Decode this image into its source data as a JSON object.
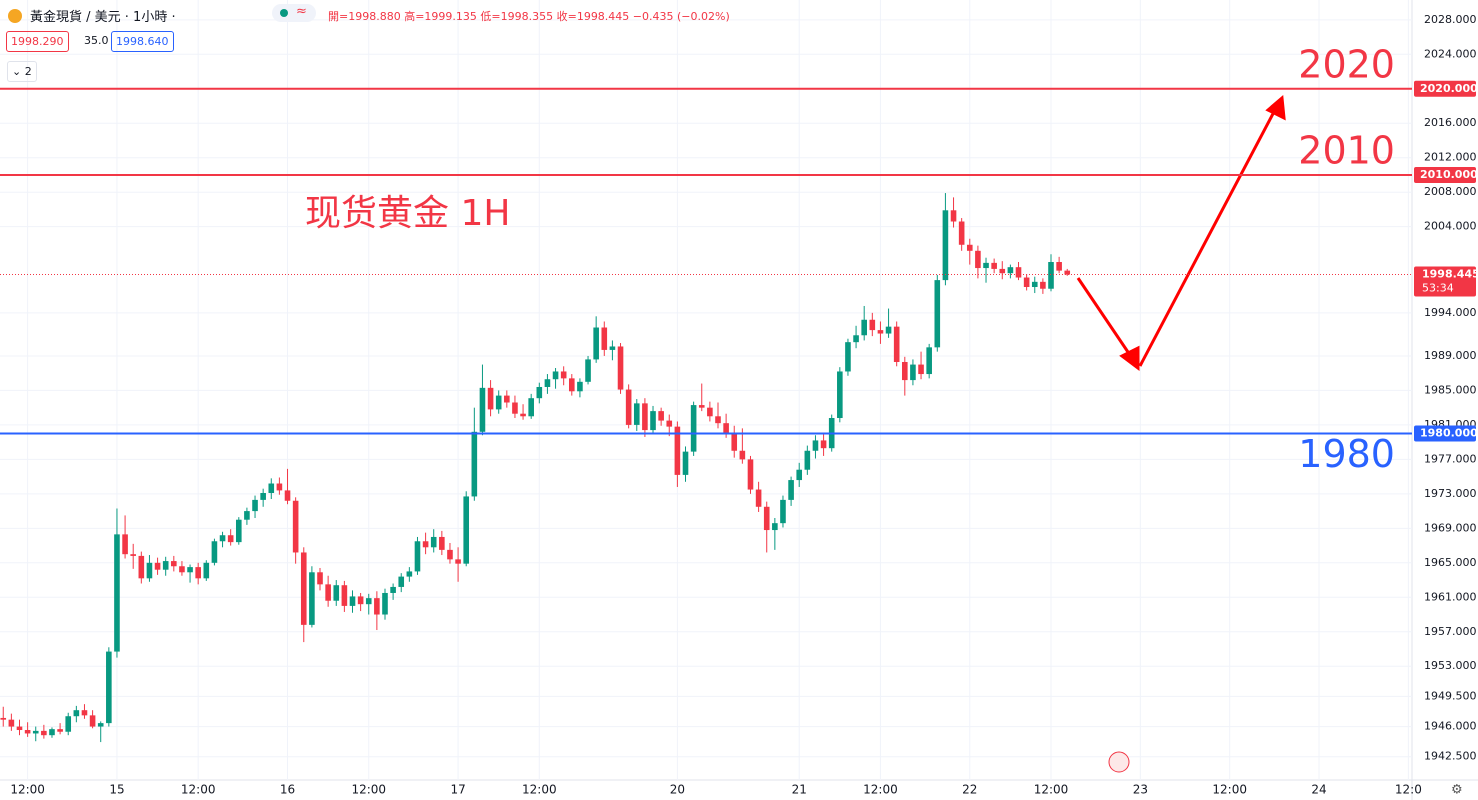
{
  "header": {
    "symbol": "黃金現貨 / 美元 · 1小時 ·",
    "ohlc": "開=1998.880 高=1999.135 低=1998.355 收=1998.445 −0.435 (−0.02%)",
    "bid": "1998.290",
    "spread": "35.0",
    "ask": "1998.640",
    "indicators": "2"
  },
  "chart_data": {
    "type": "candlestick",
    "title": "现货黄金 1H",
    "up_color": "#089981",
    "down_color": "#f23645",
    "grid": true,
    "xlim": [
      -0.4,
      173.2
    ],
    "ylim": [
      1939.8,
      2030.3
    ],
    "xticks": [
      {
        "value": 3,
        "label": "12:00"
      },
      {
        "value": 14,
        "label": "15"
      },
      {
        "value": 24,
        "label": "12:00"
      },
      {
        "value": 35,
        "label": "16"
      },
      {
        "value": 45,
        "label": "12:00"
      },
      {
        "value": 56,
        "label": "17"
      },
      {
        "value": 66,
        "label": "12:00"
      },
      {
        "value": 83,
        "label": "20"
      },
      {
        "value": 98,
        "label": "21"
      },
      {
        "value": 108,
        "label": "12:00"
      },
      {
        "value": 119,
        "label": "22"
      },
      {
        "value": 129,
        "label": "12:00"
      },
      {
        "value": 140,
        "label": "23"
      },
      {
        "value": 151,
        "label": "12:00"
      },
      {
        "value": 162,
        "label": "24"
      },
      {
        "value": 173,
        "label": "12:0"
      }
    ],
    "yticks": [
      {
        "value": 2028,
        "label": "2028.000"
      },
      {
        "value": 2024,
        "label": "2024.000"
      },
      {
        "value": 2016,
        "label": "2016.000"
      },
      {
        "value": 2012,
        "label": "2012.000"
      },
      {
        "value": 2008,
        "label": "2008.000"
      },
      {
        "value": 2004,
        "label": "2004.000"
      },
      {
        "value": 1994,
        "label": "1994.000"
      },
      {
        "value": 1989,
        "label": "1989.000"
      },
      {
        "value": 1985,
        "label": "1985.000"
      },
      {
        "value": 1981,
        "label": "1981.000"
      },
      {
        "value": 1977,
        "label": "1977.000"
      },
      {
        "value": 1973,
        "label": "1973.000"
      },
      {
        "value": 1969,
        "label": "1969.000"
      },
      {
        "value": 1965,
        "label": "1965.000"
      },
      {
        "value": 1961,
        "label": "1961.000"
      },
      {
        "value": 1957,
        "label": "1957.000"
      },
      {
        "value": 1953,
        "label": "1953.000"
      },
      {
        "value": 1949.5,
        "label": "1949.500"
      },
      {
        "value": 1946,
        "label": "1946.000"
      },
      {
        "value": 1942.5,
        "label": "1942.500"
      }
    ],
    "levels": [
      {
        "value": 2020,
        "label": "2020.000",
        "text": "2020",
        "color": "#f23645"
      },
      {
        "value": 2010,
        "label": "2010.000",
        "text": "2010",
        "color": "#f23645"
      },
      {
        "value": 1980,
        "label": "1980.000",
        "text": "1980",
        "color": "#2962ff"
      }
    ],
    "last": {
      "value": 1998.445,
      "label": "1998.445",
      "countdown": "53:34",
      "color": "#f23645"
    },
    "candles": [
      [
        1947.0,
        1948.3,
        1946.0,
        1946.8
      ],
      [
        1946.8,
        1947.5,
        1945.5,
        1946.0
      ],
      [
        1946.0,
        1946.8,
        1945.0,
        1945.6
      ],
      [
        1945.6,
        1946.5,
        1944.8,
        1945.2
      ],
      [
        1945.2,
        1946.0,
        1944.3,
        1945.5
      ],
      [
        1945.5,
        1946.2,
        1944.6,
        1945.0
      ],
      [
        1945.0,
        1945.9,
        1944.7,
        1945.7
      ],
      [
        1945.7,
        1946.4,
        1945.1,
        1945.4
      ],
      [
        1945.4,
        1947.6,
        1945.0,
        1947.2
      ],
      [
        1947.2,
        1948.4,
        1946.5,
        1947.9
      ],
      [
        1947.9,
        1948.6,
        1946.9,
        1947.3
      ],
      [
        1947.3,
        1947.9,
        1945.8,
        1946.0
      ],
      [
        1946.0,
        1946.6,
        1944.2,
        1946.4
      ],
      [
        1946.4,
        1955.2,
        1946.0,
        1954.7
      ],
      [
        1954.7,
        1971.3,
        1954.0,
        1968.3
      ],
      [
        1968.3,
        1970.5,
        1965.5,
        1966.0
      ],
      [
        1966.0,
        1967.2,
        1964.3,
        1965.8
      ],
      [
        1965.8,
        1966.3,
        1962.6,
        1963.2
      ],
      [
        1963.2,
        1965.9,
        1962.8,
        1965.0
      ],
      [
        1965.0,
        1965.6,
        1963.6,
        1964.2
      ],
      [
        1964.2,
        1965.7,
        1963.5,
        1965.2
      ],
      [
        1965.2,
        1965.8,
        1964.0,
        1964.6
      ],
      [
        1964.6,
        1965.2,
        1963.5,
        1963.9
      ],
      [
        1963.9,
        1964.8,
        1962.7,
        1964.5
      ],
      [
        1964.5,
        1965.0,
        1962.5,
        1963.2
      ],
      [
        1963.2,
        1965.3,
        1962.9,
        1965.0
      ],
      [
        1965.0,
        1967.8,
        1964.7,
        1967.5
      ],
      [
        1967.5,
        1968.6,
        1966.8,
        1968.2
      ],
      [
        1968.2,
        1968.9,
        1967.0,
        1967.4
      ],
      [
        1967.4,
        1970.3,
        1967.1,
        1970.0
      ],
      [
        1970.0,
        1971.4,
        1969.4,
        1971.0
      ],
      [
        1971.0,
        1972.8,
        1970.2,
        1972.3
      ],
      [
        1972.3,
        1973.6,
        1971.5,
        1973.1
      ],
      [
        1973.1,
        1974.8,
        1972.4,
        1974.2
      ],
      [
        1974.2,
        1974.9,
        1972.9,
        1973.4
      ],
      [
        1973.4,
        1975.9,
        1971.8,
        1972.2
      ],
      [
        1972.2,
        1972.6,
        1964.9,
        1966.2
      ],
      [
        1966.2,
        1966.8,
        1955.8,
        1957.8
      ],
      [
        1957.8,
        1964.6,
        1957.5,
        1963.9
      ],
      [
        1963.9,
        1964.4,
        1961.8,
        1962.5
      ],
      [
        1962.5,
        1963.5,
        1959.9,
        1960.6
      ],
      [
        1960.6,
        1963.0,
        1960.0,
        1962.4
      ],
      [
        1962.4,
        1962.9,
        1959.3,
        1960.0
      ],
      [
        1960.0,
        1961.8,
        1959.2,
        1961.1
      ],
      [
        1961.1,
        1961.5,
        1959.4,
        1960.2
      ],
      [
        1960.2,
        1961.4,
        1959.0,
        1960.9
      ],
      [
        1960.9,
        1961.7,
        1957.2,
        1959.0
      ],
      [
        1959.0,
        1962.0,
        1958.4,
        1961.5
      ],
      [
        1961.5,
        1962.6,
        1960.7,
        1962.2
      ],
      [
        1962.2,
        1963.8,
        1961.6,
        1963.4
      ],
      [
        1963.4,
        1964.5,
        1962.8,
        1964.0
      ],
      [
        1964.0,
        1968.0,
        1963.6,
        1967.5
      ],
      [
        1967.5,
        1968.5,
        1966.0,
        1966.8
      ],
      [
        1966.8,
        1968.9,
        1966.2,
        1968.0
      ],
      [
        1968.0,
        1968.7,
        1965.9,
        1966.5
      ],
      [
        1966.5,
        1967.3,
        1964.9,
        1965.4
      ],
      [
        1965.4,
        1966.8,
        1962.8,
        1964.9
      ],
      [
        1964.9,
        1973.3,
        1964.6,
        1972.7
      ],
      [
        1972.7,
        1983.0,
        1972.2,
        1980.2
      ],
      [
        1980.2,
        1988.0,
        1979.8,
        1985.3
      ],
      [
        1985.3,
        1986.2,
        1982.0,
        1982.8
      ],
      [
        1982.8,
        1985.0,
        1982.3,
        1984.4
      ],
      [
        1984.4,
        1985.0,
        1983.0,
        1983.6
      ],
      [
        1983.6,
        1984.4,
        1981.8,
        1982.3
      ],
      [
        1982.3,
        1983.4,
        1981.6,
        1982.0
      ],
      [
        1982.0,
        1984.6,
        1981.7,
        1984.1
      ],
      [
        1984.1,
        1985.9,
        1983.5,
        1985.4
      ],
      [
        1985.4,
        1986.9,
        1984.6,
        1986.3
      ],
      [
        1986.3,
        1987.6,
        1985.2,
        1987.2
      ],
      [
        1987.2,
        1987.8,
        1985.6,
        1986.4
      ],
      [
        1986.4,
        1986.9,
        1984.4,
        1984.9
      ],
      [
        1984.9,
        1986.4,
        1984.2,
        1986.0
      ],
      [
        1986.0,
        1989.0,
        1985.7,
        1988.6
      ],
      [
        1988.6,
        1993.6,
        1988.2,
        1992.3
      ],
      [
        1992.3,
        1993.0,
        1989.0,
        1989.7
      ],
      [
        1989.7,
        1990.8,
        1988.5,
        1990.1
      ],
      [
        1990.1,
        1990.5,
        1984.6,
        1985.1
      ],
      [
        1985.1,
        1985.7,
        1980.6,
        1981.0
      ],
      [
        1981.0,
        1984.0,
        1980.3,
        1983.5
      ],
      [
        1983.5,
        1984.1,
        1979.6,
        1980.4
      ],
      [
        1980.4,
        1983.2,
        1979.9,
        1982.6
      ],
      [
        1982.6,
        1983.0,
        1980.9,
        1981.5
      ],
      [
        1981.5,
        1982.2,
        1979.7,
        1980.8
      ],
      [
        1980.8,
        1981.4,
        1973.8,
        1975.2
      ],
      [
        1975.2,
        1978.5,
        1974.4,
        1977.9
      ],
      [
        1977.9,
        1983.7,
        1977.4,
        1983.3
      ],
      [
        1983.3,
        1985.8,
        1982.6,
        1983.0
      ],
      [
        1983.0,
        1983.7,
        1981.4,
        1982.0
      ],
      [
        1982.0,
        1983.6,
        1980.6,
        1981.2
      ],
      [
        1981.2,
        1982.3,
        1979.5,
        1980.1
      ],
      [
        1980.1,
        1980.9,
        1977.2,
        1978.0
      ],
      [
        1978.0,
        1980.6,
        1976.5,
        1977.0
      ],
      [
        1977.0,
        1977.4,
        1973.0,
        1973.5
      ],
      [
        1973.5,
        1974.4,
        1970.9,
        1971.5
      ],
      [
        1971.5,
        1972.1,
        1966.2,
        1968.8
      ],
      [
        1968.8,
        1970.2,
        1966.5,
        1969.6
      ],
      [
        1969.6,
        1972.8,
        1969.1,
        1972.3
      ],
      [
        1972.3,
        1975.0,
        1971.6,
        1974.6
      ],
      [
        1974.6,
        1976.6,
        1973.8,
        1975.8
      ],
      [
        1975.8,
        1978.6,
        1975.2,
        1978.0
      ],
      [
        1978.0,
        1979.8,
        1977.1,
        1979.2
      ],
      [
        1979.2,
        1979.9,
        1977.4,
        1978.3
      ],
      [
        1978.3,
        1982.2,
        1977.9,
        1981.8
      ],
      [
        1981.8,
        1987.7,
        1981.3,
        1987.2
      ],
      [
        1987.2,
        1991.0,
        1986.7,
        1990.6
      ],
      [
        1990.6,
        1992.5,
        1989.9,
        1991.4
      ],
      [
        1991.4,
        1994.8,
        1990.8,
        1993.2
      ],
      [
        1993.2,
        1994.0,
        1991.3,
        1992.0
      ],
      [
        1992.0,
        1993.0,
        1990.4,
        1991.6
      ],
      [
        1991.6,
        1994.5,
        1991.1,
        1992.4
      ],
      [
        1992.4,
        1993.0,
        1987.8,
        1988.3
      ],
      [
        1988.3,
        1988.9,
        1984.4,
        1986.2
      ],
      [
        1986.2,
        1988.6,
        1985.6,
        1988.0
      ],
      [
        1988.0,
        1989.5,
        1986.3,
        1986.9
      ],
      [
        1986.9,
        1990.4,
        1986.4,
        1990.0
      ],
      [
        1990.0,
        1998.4,
        1989.5,
        1997.8
      ],
      [
        1997.8,
        2007.9,
        1997.2,
        2005.9
      ],
      [
        2005.9,
        2007.4,
        2003.9,
        2004.6
      ],
      [
        2004.6,
        2005.0,
        2001.2,
        2001.9
      ],
      [
        2001.9,
        2002.6,
        1999.6,
        2001.2
      ],
      [
        2001.2,
        2001.8,
        1998.0,
        1999.2
      ],
      [
        1999.2,
        2000.4,
        1997.5,
        1999.8
      ],
      [
        1999.8,
        2000.3,
        1998.6,
        1999.1
      ],
      [
        1999.1,
        2000.0,
        1997.9,
        1998.6
      ],
      [
        1998.6,
        1999.6,
        1998.0,
        1999.3
      ],
      [
        1999.3,
        1999.9,
        1997.8,
        1998.1
      ],
      [
        1998.1,
        1998.5,
        1996.6,
        1997.0
      ],
      [
        1997.0,
        1998.2,
        1996.3,
        1997.6
      ],
      [
        1997.6,
        1998.0,
        1996.2,
        1996.8
      ],
      [
        1996.8,
        2000.8,
        1996.5,
        1999.9
      ],
      [
        1999.9,
        2000.5,
        1998.6,
        1998.9
      ],
      [
        1998.9,
        1999.1,
        1998.3,
        1998.445
      ]
    ]
  }
}
